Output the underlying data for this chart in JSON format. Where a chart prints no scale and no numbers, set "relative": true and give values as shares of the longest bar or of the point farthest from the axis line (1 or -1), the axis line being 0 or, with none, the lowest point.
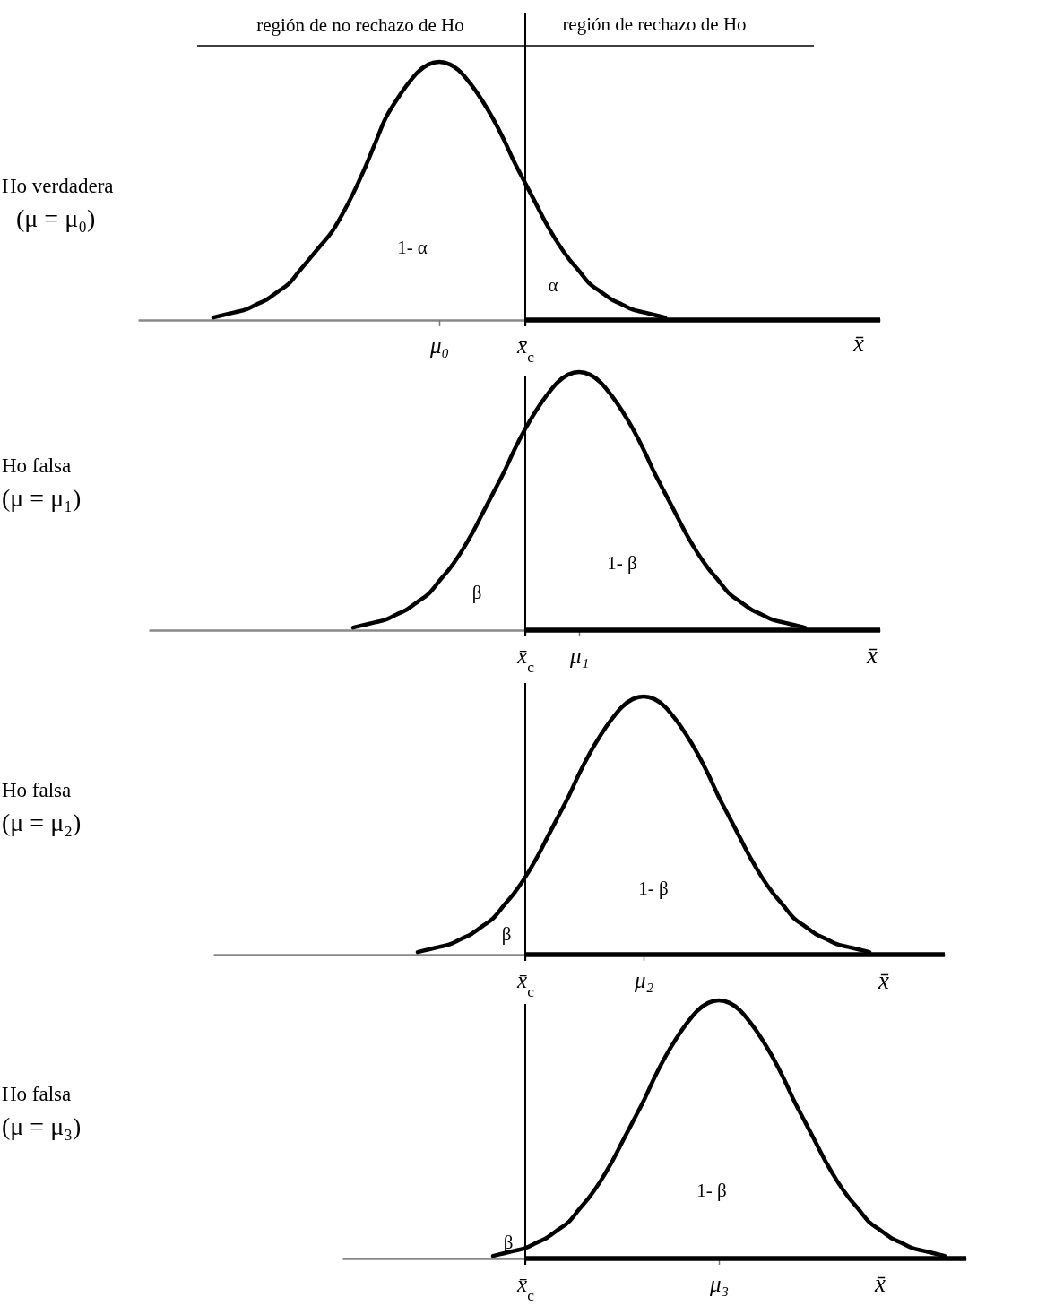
{
  "chart_data": [
    {
      "type": "line",
      "relative": true,
      "ylabel": "Ho verdadera\n(μ = μ₀)",
      "xlabel": "x̄",
      "categories": [
        null,
        null,
        null,
        null,
        null,
        null,
        null,
        null,
        null,
        null,
        null,
        null,
        null,
        null,
        null,
        null,
        null,
        null,
        null,
        null,
        null,
        null,
        null,
        null,
        null,
        null,
        null,
        null,
        "μ₀",
        null,
        null,
        null,
        null,
        null,
        null,
        null,
        "x̄$_{c}$",
        null,
        null,
        null,
        null,
        null,
        null,
        null,
        null,
        null,
        null,
        null,
        null,
        null,
        null,
        null,
        null,
        null,
        null,
        null,
        null,
        null,
        null,
        null,
        null,
        null,
        null,
        null,
        null,
        null,
        null,
        null,
        null,
        null
      ],
      "series": [
        {
          "color": "#000000",
          "values": [
            null,
            null,
            null,
            null,
            null,
            null,
            null,
            0.01,
            0.02,
            0.03,
            0.04,
            0.06,
            0.08,
            0.11,
            0.14,
            0.19,
            0.24,
            0.29,
            0.34,
            0.41,
            0.49,
            0.58,
            0.68,
            0.78,
            0.85,
            0.91,
            0.96,
            0.99,
            1,
            0.99,
            0.96,
            0.91,
            0.85,
            0.78,
            0.7,
            0.61,
            0.53,
            0.45,
            0.37,
            0.3,
            0.24,
            0.19,
            0.14,
            0.11,
            0.08,
            0.06,
            0.04,
            0.03,
            0.02,
            0.01,
            null,
            null,
            null,
            null,
            null,
            null,
            null,
            null,
            null,
            null,
            null,
            null,
            null,
            null,
            null,
            null,
            null,
            null,
            null,
            null
          ]
        },
        {
          "color": "#000000",
          "values": [
            null,
            null,
            null,
            null,
            null,
            null,
            null,
            null,
            null,
            null,
            null,
            null,
            null,
            null,
            null,
            null,
            null,
            null,
            null,
            null,
            null,
            null,
            null,
            null,
            null,
            null,
            null,
            null,
            null,
            null,
            null,
            null,
            null,
            null,
            null,
            null,
            0,
            0,
            0,
            0,
            0,
            0,
            0,
            0,
            0,
            0,
            0,
            0,
            0,
            0,
            0,
            0,
            0,
            0,
            0,
            0,
            0,
            0,
            0,
            0,
            0,
            0,
            0,
            0,
            0,
            0,
            0,
            0,
            0,
            0
          ]
        }
      ],
      "ref_lines": [
        {
          "axis": "x",
          "value": "x̄$_{c}$",
          "color": "#000000"
        }
      ],
      "annotations": [
        "región de no rechazo de Ho",
        "región de rechazo de Ho",
        "1- α",
        "α"
      ]
    },
    {
      "type": "line",
      "relative": true,
      "ylabel": "Ho falsa\n(μ = μ₁)",
      "xlabel": "x̄",
      "categories": [
        null,
        null,
        null,
        null,
        null,
        null,
        null,
        null,
        null,
        null,
        null,
        null,
        null,
        null,
        null,
        null,
        null,
        null,
        null,
        null,
        null,
        null,
        null,
        null,
        null,
        null,
        null,
        null,
        null,
        null,
        null,
        null,
        null,
        null,
        null,
        "x̄$_{c}$",
        null,
        null,
        null,
        null,
        "μ₁",
        null,
        null,
        null,
        null,
        null,
        null,
        null,
        null,
        null,
        null,
        null,
        null,
        null,
        null,
        null,
        null,
        null,
        null,
        null,
        null,
        null,
        null,
        null,
        null,
        null,
        null,
        null,
        null
      ],
      "series": [
        {
          "color": "#000000",
          "values": [
            null,
            null,
            null,
            null,
            null,
            null,
            null,
            null,
            null,
            null,
            null,
            null,
            null,
            null,
            null,
            null,
            null,
            null,
            null,
            0.01,
            0.02,
            0.03,
            0.04,
            0.06,
            0.08,
            0.11,
            0.14,
            0.19,
            0.24,
            0.3,
            0.37,
            0.45,
            0.53,
            0.61,
            0.7,
            0.78,
            0.85,
            0.91,
            0.96,
            0.99,
            1,
            0.99,
            0.96,
            0.91,
            0.85,
            0.78,
            0.7,
            0.61,
            0.53,
            0.45,
            0.37,
            0.3,
            0.24,
            0.19,
            0.14,
            0.11,
            0.08,
            0.06,
            0.04,
            0.03,
            0.02,
            0.01,
            null,
            null,
            null,
            null,
            null,
            null,
            null
          ]
        },
        {
          "color": "#000000",
          "values": [
            null,
            null,
            null,
            null,
            null,
            null,
            null,
            null,
            null,
            null,
            null,
            null,
            null,
            null,
            null,
            null,
            null,
            null,
            null,
            null,
            null,
            null,
            null,
            null,
            null,
            null,
            null,
            null,
            null,
            null,
            null,
            null,
            null,
            null,
            null,
            0,
            0,
            0,
            0,
            0,
            0,
            0,
            0,
            0,
            0,
            0,
            0,
            0,
            0,
            0,
            0,
            0,
            0,
            0,
            0,
            0,
            0,
            0,
            0,
            0,
            0,
            0,
            0,
            0,
            0,
            0,
            0,
            0,
            0
          ]
        }
      ],
      "ref_lines": [
        {
          "axis": "x",
          "value": "x̄$_{c}$",
          "color": "#000000"
        }
      ],
      "annotations": [
        "1- β",
        "β"
      ]
    },
    {
      "type": "line",
      "relative": true,
      "ylabel": "Ho falsa\n(μ = μ₂)",
      "xlabel": "x̄",
      "categories": [
        null,
        null,
        null,
        null,
        null,
        null,
        null,
        null,
        null,
        null,
        null,
        null,
        null,
        null,
        null,
        null,
        null,
        null,
        null,
        null,
        null,
        null,
        null,
        null,
        null,
        null,
        null,
        null,
        null,
        "x̄$_{c}$",
        null,
        null,
        null,
        null,
        null,
        null,
        null,
        null,
        null,
        null,
        "μ₂",
        null,
        null,
        null,
        null,
        null,
        null,
        null,
        null,
        null,
        null,
        null,
        null,
        null,
        null,
        null,
        null,
        null,
        null,
        null,
        null,
        null,
        null,
        null,
        null,
        null,
        null,
        null,
        null
      ],
      "series": [
        {
          "color": "#000000",
          "values": [
            null,
            null,
            null,
            null,
            null,
            null,
            null,
            null,
            null,
            null,
            null,
            null,
            null,
            null,
            null,
            null,
            null,
            null,
            null,
            0.01,
            0.02,
            0.03,
            0.04,
            0.06,
            0.08,
            0.11,
            0.14,
            0.19,
            0.24,
            0.3,
            0.37,
            0.45,
            0.53,
            0.61,
            0.7,
            0.78,
            0.85,
            0.91,
            0.96,
            0.99,
            1,
            0.99,
            0.96,
            0.91,
            0.85,
            0.78,
            0.7,
            0.61,
            0.53,
            0.45,
            0.37,
            0.3,
            0.24,
            0.19,
            0.14,
            0.11,
            0.08,
            0.06,
            0.04,
            0.03,
            0.02,
            0.01,
            null,
            null,
            null,
            null,
            null,
            null,
            null
          ]
        },
        {
          "color": "#000000",
          "values": [
            null,
            null,
            null,
            null,
            null,
            null,
            null,
            null,
            null,
            null,
            null,
            null,
            null,
            null,
            null,
            null,
            null,
            null,
            null,
            null,
            null,
            null,
            null,
            null,
            null,
            null,
            null,
            null,
            null,
            0,
            0,
            0,
            0,
            0,
            0,
            0,
            0,
            0,
            0,
            0,
            0,
            0,
            0,
            0,
            0,
            0,
            0,
            0,
            0,
            0,
            0,
            0,
            0,
            0,
            0,
            0,
            0,
            0,
            0,
            0,
            0,
            0,
            0,
            0,
            0,
            0,
            0,
            0,
            0
          ]
        }
      ],
      "ref_lines": [
        {
          "axis": "x",
          "value": "x̄$_{c}$",
          "color": "#000000"
        }
      ],
      "annotations": [
        "1- β",
        "β"
      ]
    },
    {
      "type": "line",
      "relative": true,
      "ylabel": "Ho falsa\n(μ = μ₃)",
      "xlabel": "x̄",
      "categories": [
        null,
        null,
        null,
        null,
        null,
        null,
        null,
        null,
        null,
        null,
        null,
        null,
        null,
        null,
        null,
        null,
        null,
        "x̄$_{c}$",
        null,
        null,
        null,
        null,
        null,
        null,
        null,
        null,
        null,
        null,
        null,
        null,
        null,
        null,
        null,
        null,
        null,
        "μ₃",
        null,
        null,
        null,
        null,
        null,
        null,
        null,
        null,
        null,
        null,
        null,
        null,
        null,
        null,
        null,
        null,
        null,
        null,
        null,
        null,
        null,
        null,
        null
      ],
      "series": [
        {
          "color": "#000000",
          "values": [
            null,
            null,
            null,
            null,
            null,
            null,
            null,
            null,
            null,
            null,
            null,
            null,
            null,
            null,
            0.01,
            0.02,
            0.03,
            0.04,
            0.06,
            0.08,
            0.11,
            0.14,
            0.19,
            0.24,
            0.3,
            0.37,
            0.45,
            0.53,
            0.61,
            0.7,
            0.78,
            0.85,
            0.91,
            0.96,
            0.99,
            1,
            0.99,
            0.96,
            0.91,
            0.85,
            0.78,
            0.7,
            0.61,
            0.53,
            0.45,
            0.37,
            0.3,
            0.24,
            0.19,
            0.14,
            0.11,
            0.08,
            0.06,
            0.04,
            0.03,
            0.02,
            0.01,
            null,
            null
          ]
        },
        {
          "color": "#000000",
          "values": [
            null,
            null,
            null,
            null,
            null,
            null,
            null,
            null,
            null,
            null,
            null,
            null,
            null,
            null,
            null,
            null,
            null,
            0,
            0,
            0,
            0,
            0,
            0,
            0,
            0,
            0,
            0,
            0,
            0,
            0,
            0,
            0,
            0,
            0,
            0,
            0,
            0,
            0,
            0,
            0,
            0,
            0,
            0,
            0,
            0,
            0,
            0,
            0,
            0,
            0,
            0,
            0,
            0,
            0,
            0,
            0,
            0,
            0,
            0
          ]
        }
      ],
      "ref_lines": [
        {
          "axis": "x",
          "value": "x̄$_{c}$",
          "color": "#000000"
        }
      ],
      "annotations": [
        "1- β",
        "β"
      ]
    }
  ]
}
